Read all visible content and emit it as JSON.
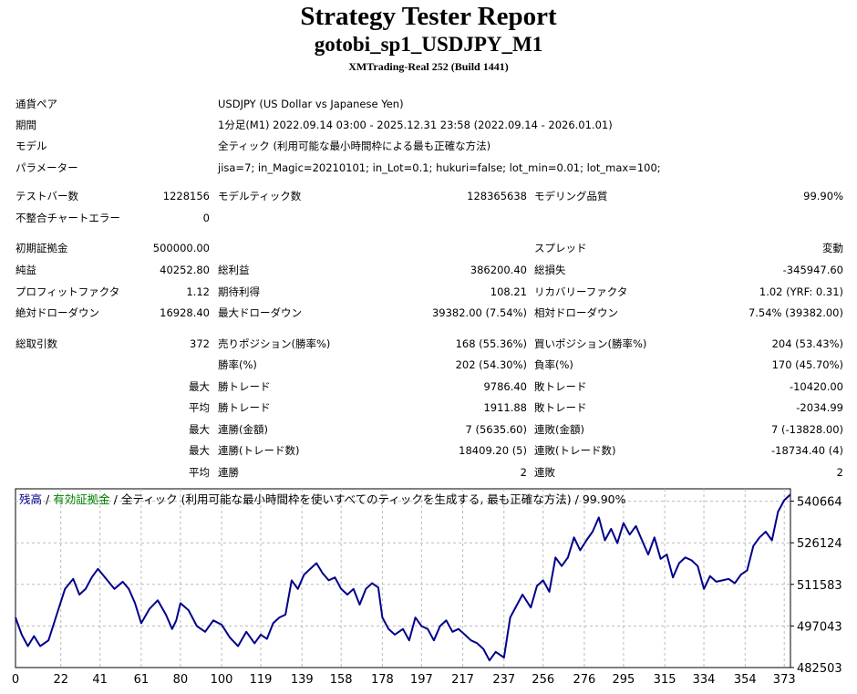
{
  "header": {
    "title": "Strategy Tester Report",
    "subtitle": "gotobi_sp1_USDJPY_M1",
    "build": "XMTrading-Real 252 (Build 1441)"
  },
  "info": {
    "symbol_label": "通貨ペア",
    "symbol_value": "USDJPY (US Dollar vs Japanese Yen)",
    "period_label": "期間",
    "period_value": "1分足(M1) 2022.09.14 03:00 - 2025.12.31 23:58 (2022.09.14 - 2026.01.01)",
    "model_label": "モデル",
    "model_value": "全ティック (利用可能な最小時間枠による最も正確な方法)",
    "params_label": "パラメーター",
    "params_value": "jisa=7; in_Magic=20210101; in_Lot=0.1; hukuri=false; lot_min=0.01; lot_max=100;"
  },
  "stats": {
    "bars_label": "テストバー数",
    "bars_value": "1228156",
    "ticks_label": "モデルティック数",
    "ticks_value": "128365638",
    "quality_label": "モデリング品質",
    "quality_value": "99.90%",
    "mismatch_label": "不整合チャートエラー",
    "mismatch_value": "0",
    "deposit_label": "初期証拠金",
    "deposit_value": "500000.00",
    "spread_label": "スプレッド",
    "spread_value": "変動",
    "netprofit_label": "純益",
    "netprofit_value": "40252.80",
    "grossprofit_label": "総利益",
    "grossprofit_value": "386200.40",
    "grossloss_label": "総損失",
    "grossloss_value": "-345947.60",
    "pf_label": "プロフィットファクタ",
    "pf_value": "1.12",
    "expected_label": "期待利得",
    "expected_value": "108.21",
    "recovery_label": "リカバリーファクタ",
    "recovery_value": "1.02 (YRF: 0.31)",
    "absdd_label": "絶対ドローダウン",
    "absdd_value": "16928.40",
    "maxdd_label": "最大ドローダウン",
    "maxdd_value": "39382.00 (7.54%)",
    "reldd_label": "相対ドローダウン",
    "reldd_value": "7.54% (39382.00)",
    "trades_label": "総取引数",
    "trades_value": "372",
    "short_label": "売りポジション(勝率%)",
    "short_value": "168 (55.36%)",
    "long_label": "買いポジション(勝率%)",
    "long_value": "204 (53.43%)",
    "win_label": "勝率(%)",
    "win_value": "202 (54.30%)",
    "loss_label": "負率(%)",
    "loss_value": "170 (45.70%)",
    "max1": "最大",
    "largest_win_label": "勝トレード",
    "largest_win_value": "9786.40",
    "largest_loss_label": "敗トレード",
    "largest_loss_value": "-10420.00",
    "avg1": "平均",
    "avg_win_label": "勝トレード",
    "avg_win_value": "1911.88",
    "avg_loss_label": "敗トレード",
    "avg_loss_value": "-2034.99",
    "max2": "最大",
    "cw_amt_label": "連勝(金額)",
    "cw_amt_value": "7 (5635.60)",
    "cl_amt_label": "連敗(金額)",
    "cl_amt_value": "7 (-13828.00)",
    "max3": "最大",
    "cw_cnt_label": "連勝(トレード数)",
    "cw_cnt_value": "18409.20 (5)",
    "cl_cnt_label": "連敗(トレード数)",
    "cl_cnt_value": "-18734.40 (4)",
    "avg2": "平均",
    "avg_cw_label": "連勝",
    "avg_cw_value": "2",
    "avg_cl_label": "連敗",
    "avg_cl_value": "2"
  },
  "chart_legend": {
    "balance": "残高",
    "sep1": " / ",
    "equity": "有効証拠金",
    "rest": " / 全ティック (利用可能な最小時間枠を使いすべてのティックを生成する, 最も正確な方法) / 99.90%",
    "balance_color": "#00008b",
    "equity_color": "#008000"
  },
  "chart_data": {
    "type": "line",
    "x_ticks": [
      "0",
      "22",
      "41",
      "61",
      "80",
      "100",
      "119",
      "139",
      "158",
      "178",
      "197",
      "217",
      "237",
      "256",
      "276",
      "295",
      "315",
      "334",
      "354",
      "373"
    ],
    "y_ticks": [
      "540664",
      "526124",
      "511583",
      "497043",
      "482503"
    ],
    "xlim": [
      0,
      376
    ],
    "ylim": [
      482503,
      545000
    ],
    "grid": true,
    "series": [
      {
        "name": "残高",
        "color": "#00008b",
        "x": [
          0,
          3,
          6,
          9,
          12,
          16,
          20,
          24,
          28,
          31,
          34,
          37,
          40,
          44,
          48,
          52,
          55,
          58,
          61,
          65,
          69,
          73,
          76,
          78,
          80,
          84,
          88,
          92,
          96,
          100,
          104,
          108,
          112,
          116,
          119,
          122,
          125,
          128,
          131,
          134,
          137,
          140,
          143,
          146,
          149,
          152,
          155,
          158,
          161,
          164,
          167,
          170,
          173,
          176,
          178,
          181,
          184,
          188,
          191,
          194,
          197,
          200,
          203,
          206,
          209,
          212,
          215,
          218,
          221,
          224,
          227,
          230,
          233,
          237,
          240,
          243,
          246,
          250,
          253,
          256,
          259,
          262,
          265,
          268,
          271,
          274,
          277,
          280,
          283,
          286,
          289,
          292,
          295,
          298,
          301,
          304,
          307,
          310,
          313,
          316,
          319,
          322,
          325,
          328,
          331,
          334,
          337,
          340,
          343,
          346,
          349,
          352,
          355,
          358,
          361,
          364,
          367,
          370,
          373,
          376
        ],
        "y": [
          500000,
          494000,
          490000,
          493500,
          490000,
          492000,
          501000,
          510000,
          513500,
          508000,
          510000,
          514000,
          517000,
          513500,
          510000,
          512500,
          510000,
          505000,
          498000,
          503000,
          506000,
          501000,
          496000,
          499000,
          505000,
          502500,
          497000,
          495000,
          499000,
          497500,
          493000,
          490000,
          495000,
          491000,
          494000,
          492500,
          498000,
          500000,
          501000,
          513000,
          510000,
          515000,
          517000,
          519000,
          515500,
          513000,
          514000,
          510000,
          508000,
          510000,
          504500,
          510000,
          512000,
          510500,
          500000,
          496000,
          494000,
          496000,
          492000,
          500000,
          497000,
          496000,
          492000,
          497000,
          499000,
          495000,
          496000,
          494000,
          492000,
          491000,
          489000,
          485000,
          488000,
          486000,
          500000,
          504000,
          508000,
          503500,
          511000,
          513000,
          509000,
          521000,
          518000,
          521000,
          528000,
          523500,
          527000,
          530000,
          535000,
          527000,
          531000,
          526000,
          533000,
          529000,
          532000,
          527000,
          522000,
          528000,
          520500,
          522000,
          514000,
          519000,
          521000,
          520000,
          518000,
          510000,
          514500,
          512500,
          513000,
          513500,
          512000,
          515000,
          516500,
          525000,
          528000,
          530000,
          527000,
          537000,
          541000,
          543000
        ]
      }
    ]
  }
}
